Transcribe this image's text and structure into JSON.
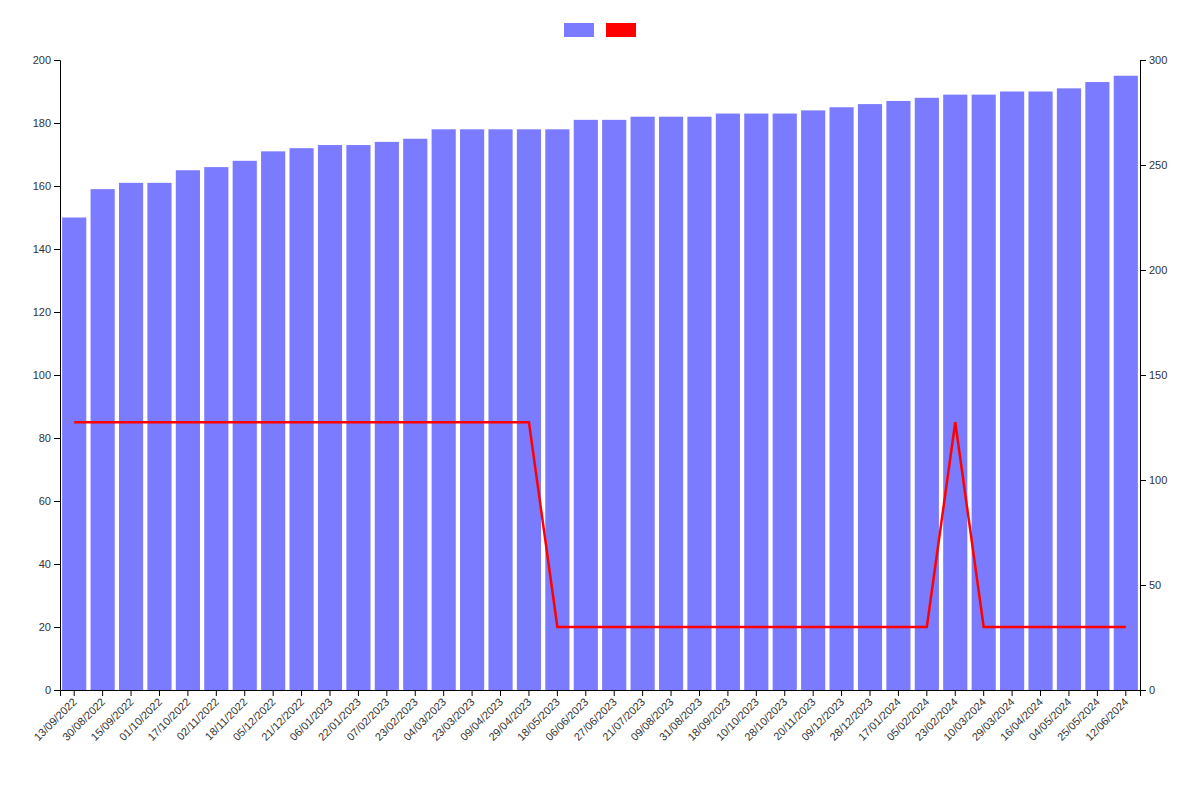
{
  "chart_data": {
    "type": "bar",
    "categories": [
      "13/09/2022",
      "30/08/2022",
      "15/09/2022",
      "01/10/2022",
      "17/10/2022",
      "02/11/2022",
      "18/11/2022",
      "05/12/2022",
      "21/12/2022",
      "06/01/2023",
      "22/01/2023",
      "07/02/2023",
      "23/02/2023",
      "04/03/2023",
      "23/03/2023",
      "09/04/2023",
      "29/04/2023",
      "18/05/2023",
      "06/06/2023",
      "27/06/2023",
      "21/07/2023",
      "09/08/2023",
      "31/08/2023",
      "18/09/2023",
      "10/10/2023",
      "28/10/2023",
      "20/11/2023",
      "09/12/2023",
      "28/12/2023",
      "17/01/2024",
      "05/02/2024",
      "23/02/2024",
      "10/03/2024",
      "29/03/2024",
      "16/04/2024",
      "04/05/2024",
      "25/05/2024",
      "12/06/2024"
    ],
    "series": [
      {
        "type": "bar",
        "color": "#7b7bff",
        "values": [
          150,
          159,
          161,
          161,
          165,
          166,
          168,
          171,
          172,
          173,
          173,
          174,
          175,
          178,
          178,
          178,
          178,
          178,
          181,
          181,
          182,
          182,
          182,
          183,
          183,
          183,
          184,
          185,
          186,
          187,
          188,
          189,
          189,
          190,
          190,
          191,
          193,
          195
        ]
      },
      {
        "type": "line",
        "color": "#ff0000",
        "values": [
          85,
          85,
          85,
          85,
          85,
          85,
          85,
          85,
          85,
          85,
          85,
          85,
          85,
          85,
          85,
          85,
          85,
          20,
          20,
          20,
          20,
          20,
          20,
          20,
          20,
          20,
          20,
          20,
          20,
          20,
          20,
          85,
          20,
          20,
          20,
          20,
          20,
          20
        ]
      }
    ],
    "ylim": [
      0,
      200
    ],
    "yticks": [
      0,
      20,
      40,
      60,
      80,
      100,
      120,
      140,
      160,
      180,
      200
    ],
    "y2lim": [
      0,
      300
    ],
    "y2ticks": [
      0,
      50,
      100,
      150,
      200,
      250,
      300
    ],
    "grid": false,
    "legend": "top"
  }
}
